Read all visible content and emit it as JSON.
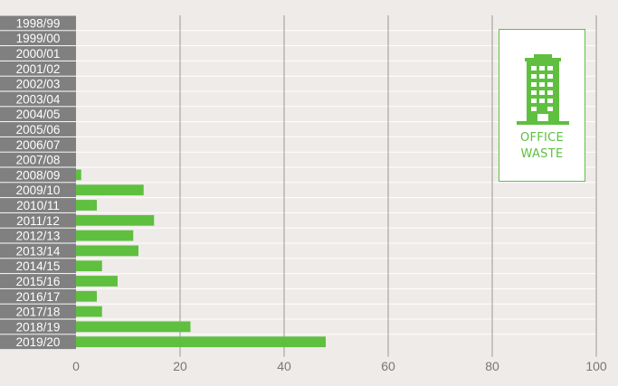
{
  "chart_data": {
    "type": "bar",
    "orientation": "horizontal",
    "categories": [
      "1998/99",
      "1999/00",
      "2000/01",
      "2001/02",
      "2002/03",
      "2003/04",
      "2004/05",
      "2005/06",
      "2006/07",
      "2007/08",
      "2008/09",
      "2009/10",
      "2010/11",
      "2011/12",
      "2012/13",
      "2013/14",
      "2014/15",
      "2015/16",
      "2016/17",
      "2017/18",
      "2018/19",
      "2019/20"
    ],
    "values": [
      0,
      0,
      0,
      0,
      0,
      0,
      0,
      0,
      0,
      0,
      1,
      13,
      4,
      15,
      11,
      12,
      5,
      8,
      4,
      5,
      22,
      48
    ],
    "xlim": [
      0,
      100
    ],
    "xticks": [
      0,
      20,
      40,
      60,
      80,
      100
    ],
    "grid": true,
    "title": "",
    "xlabel": "",
    "ylabel": ""
  },
  "legend": {
    "line1": "OFFICE",
    "line2": "WASTE",
    "icon": "office-building-icon"
  },
  "colors": {
    "bar": "#5fbf3f",
    "label_bg": "#808080",
    "label_text": "#ffffff",
    "background": "#efebe9",
    "grid": "#999999",
    "row_separator": "#ffffff"
  }
}
